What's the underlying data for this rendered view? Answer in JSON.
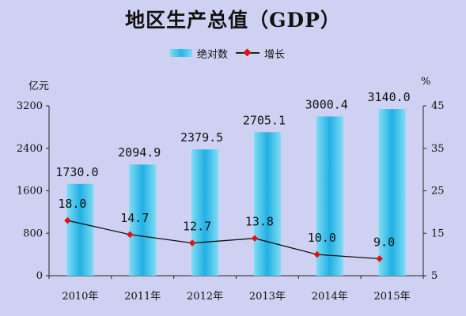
{
  "chart_data": {
    "type": "bar",
    "title": "地区生产总值（GDP）",
    "categories": [
      "2010年",
      "2011年",
      "2012年",
      "2013年",
      "2014年",
      "2015年"
    ],
    "series": [
      {
        "name": "绝对数",
        "type": "bar",
        "axis": "left",
        "values": [
          1730.0,
          2094.9,
          2379.5,
          2705.1,
          3000.4,
          3140.0
        ],
        "labels": [
          "1730.0",
          "2094.9",
          "2379.5",
          "2705.1",
          "3000.4",
          "3140.0"
        ],
        "color": "#29b5e6"
      },
      {
        "name": "增长",
        "type": "line",
        "axis": "right",
        "values": [
          18.0,
          14.7,
          12.7,
          13.8,
          10.0,
          9.0
        ],
        "labels": [
          "18.0",
          "14.7",
          "12.7",
          "13.8",
          "10.0",
          "9.0"
        ],
        "color": "#e01010"
      }
    ],
    "y_left": {
      "unit": "亿元",
      "ylim": [
        0,
        3200
      ],
      "ticks": [
        "0",
        "800",
        "1600",
        "2400",
        "3200"
      ]
    },
    "y_right": {
      "unit": "%",
      "ylim": [
        5,
        45
      ],
      "ticks": [
        "5",
        "15",
        "25",
        "35",
        "45"
      ]
    },
    "legend_position": "top-center",
    "grid": false
  }
}
